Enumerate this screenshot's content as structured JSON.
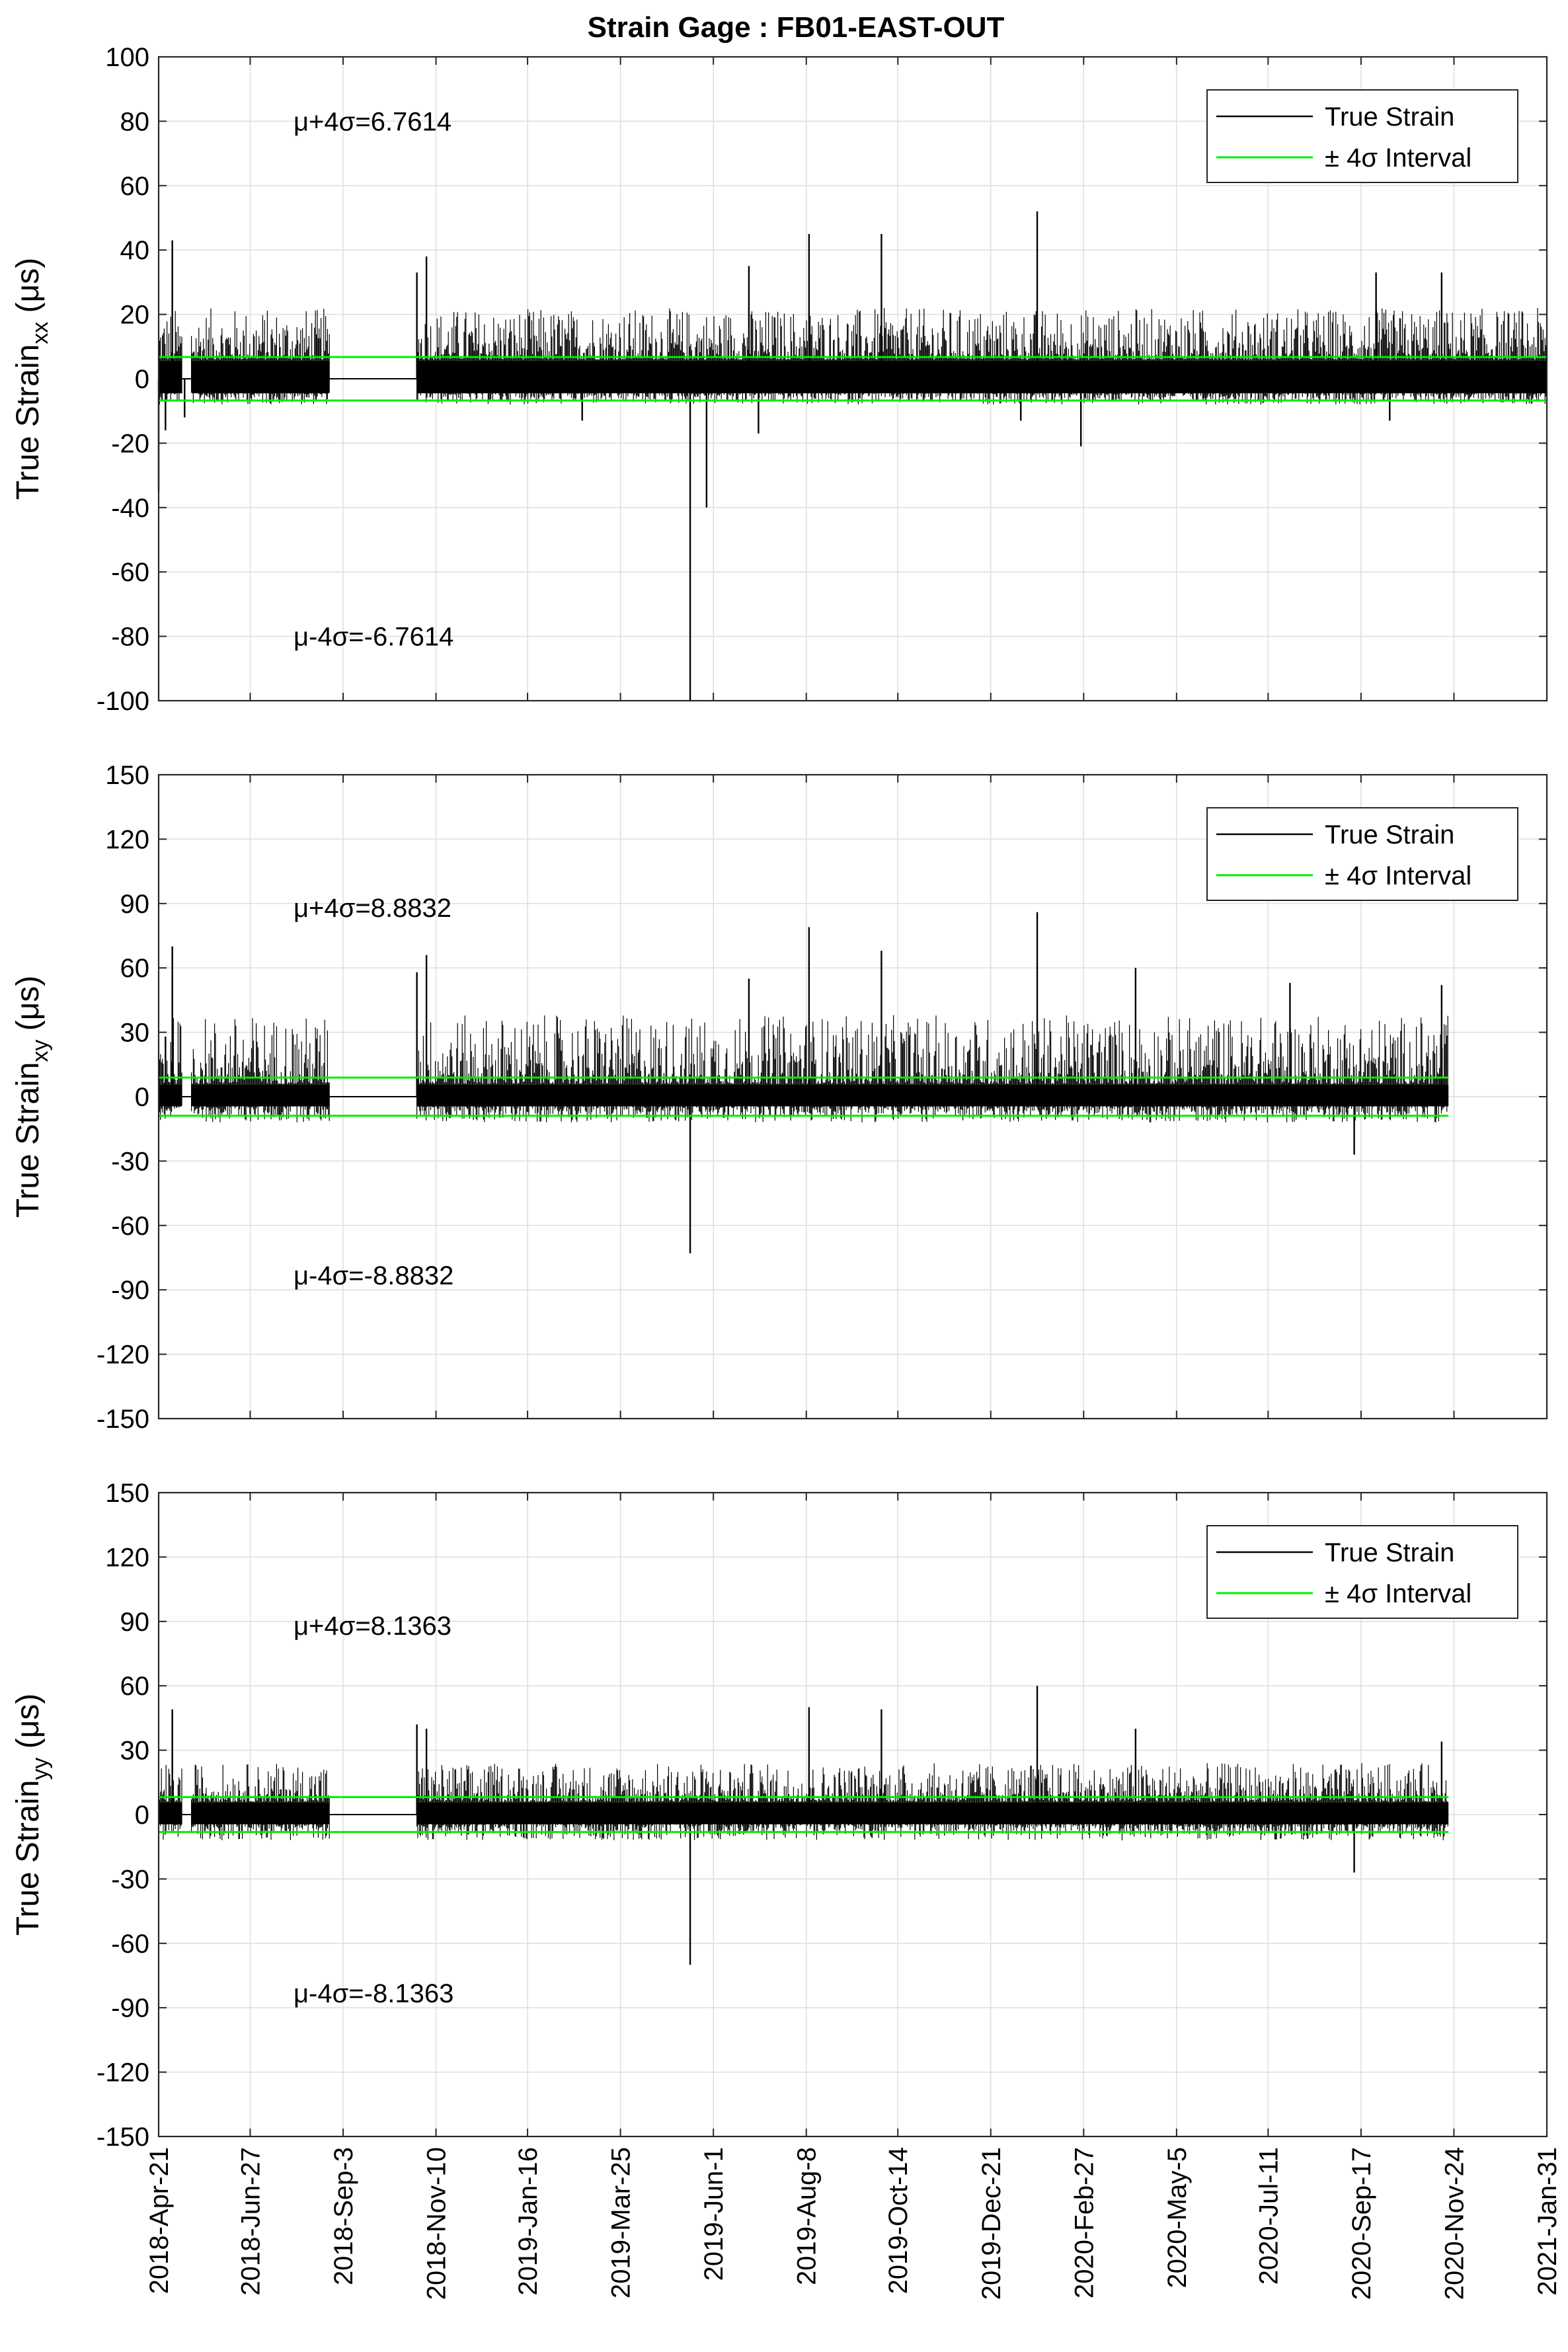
{
  "figure": {
    "title": "Strain Gage : FB01-EAST-OUT"
  },
  "chart_data": [
    {
      "type": "line",
      "title": "Strain Gage : FB01-EAST-OUT",
      "ylabel_main": "True Strain",
      "ylabel_sub": "xx",
      "ylabel_unit": "(μs)",
      "ylim": [
        -100,
        100
      ],
      "yticks": [
        100,
        80,
        60,
        40,
        20,
        0,
        -20,
        -40,
        -60,
        -80,
        -100
      ],
      "grid": true,
      "legend_position": "top-right",
      "legend": [
        "True Strain",
        "± 4σ Interval"
      ],
      "annotations": {
        "upper": "μ+4σ=6.7614",
        "lower": "μ-4σ=-6.7614"
      },
      "threshold": 6.7614,
      "data_end": "2021-01-31",
      "series": [
        {
          "name": "True Strain",
          "color": "#000000",
          "envelope_typical_max": 22,
          "envelope_typical_min": -8
        },
        {
          "name": "± 4σ Interval",
          "color": "#00ee00",
          "values": [
            6.7614,
            -6.7614
          ]
        }
      ],
      "spikes": [
        {
          "x": "2018-04-21",
          "y": -35
        },
        {
          "x": "2018-04-26",
          "y": -16
        },
        {
          "x": "2018-05-01",
          "y": 43
        },
        {
          "x": "2018-05-10",
          "y": -12
        },
        {
          "x": "2018-10-27",
          "y": 33
        },
        {
          "x": "2018-11-03",
          "y": 38
        },
        {
          "x": "2019-02-25",
          "y": -13
        },
        {
          "x": "2019-05-15",
          "y": -100
        },
        {
          "x": "2019-05-27",
          "y": -40
        },
        {
          "x": "2019-06-27",
          "y": 35
        },
        {
          "x": "2019-07-04",
          "y": -17
        },
        {
          "x": "2019-08-10",
          "y": 45
        },
        {
          "x": "2019-10-02",
          "y": 45
        },
        {
          "x": "2020-01-12",
          "y": -13
        },
        {
          "x": "2020-01-24",
          "y": 52
        },
        {
          "x": "2020-02-25",
          "y": -21
        },
        {
          "x": "2020-09-28",
          "y": 33
        },
        {
          "x": "2020-10-08",
          "y": -13
        },
        {
          "x": "2020-11-15",
          "y": 33
        }
      ]
    },
    {
      "type": "line",
      "ylabel_main": "True Strain",
      "ylabel_sub": "xy",
      "ylabel_unit": "(μs)",
      "ylim": [
        -150,
        150
      ],
      "yticks": [
        150,
        120,
        90,
        60,
        30,
        0,
        -30,
        -60,
        -90,
        -120,
        -150
      ],
      "grid": true,
      "legend_position": "top-right",
      "legend": [
        "True Strain",
        "± 4σ Interval"
      ],
      "annotations": {
        "upper": "μ+4σ=8.8832",
        "lower": "μ-4σ=-8.8832"
      },
      "threshold": 8.8832,
      "data_end": "2020-11-20",
      "series": [
        {
          "name": "True Strain",
          "color": "#000000",
          "envelope_typical_max": 38,
          "envelope_typical_min": -12
        },
        {
          "name": "± 4σ Interval",
          "color": "#00ee00",
          "values": [
            8.8832,
            -8.8832
          ]
        }
      ],
      "spikes": [
        {
          "x": "2018-04-26",
          "y": 28
        },
        {
          "x": "2018-05-01",
          "y": 70
        },
        {
          "x": "2018-10-27",
          "y": 58
        },
        {
          "x": "2018-11-03",
          "y": 66
        },
        {
          "x": "2019-05-15",
          "y": -73
        },
        {
          "x": "2019-06-27",
          "y": 55
        },
        {
          "x": "2019-08-10",
          "y": 79
        },
        {
          "x": "2019-10-02",
          "y": 68
        },
        {
          "x": "2020-01-24",
          "y": 86
        },
        {
          "x": "2020-04-05",
          "y": 60
        },
        {
          "x": "2020-07-27",
          "y": 53
        },
        {
          "x": "2020-09-12",
          "y": -27
        },
        {
          "x": "2020-11-15",
          "y": 52
        }
      ]
    },
    {
      "type": "line",
      "ylabel_main": "True Strain",
      "ylabel_sub": "yy",
      "ylabel_unit": "(μs)",
      "ylim": [
        -150,
        150
      ],
      "yticks": [
        150,
        120,
        90,
        60,
        30,
        0,
        -30,
        -60,
        -90,
        -120,
        -150
      ],
      "grid": true,
      "legend_position": "top-right",
      "legend": [
        "True Strain",
        "± 4σ Interval"
      ],
      "annotations": {
        "upper": "μ+4σ=8.1363",
        "lower": "μ-4σ=-8.1363"
      },
      "threshold": 8.1363,
      "data_end": "2020-11-20",
      "series": [
        {
          "name": "True Strain",
          "color": "#000000",
          "envelope_typical_max": 24,
          "envelope_typical_min": -12
        },
        {
          "name": "± 4σ Interval",
          "color": "#00ee00",
          "values": [
            8.1363,
            -8.1363
          ]
        }
      ],
      "spikes": [
        {
          "x": "2018-05-01",
          "y": 49
        },
        {
          "x": "2018-10-27",
          "y": 42
        },
        {
          "x": "2018-11-03",
          "y": 40
        },
        {
          "x": "2019-05-15",
          "y": -70
        },
        {
          "x": "2019-08-10",
          "y": 50
        },
        {
          "x": "2019-10-02",
          "y": 49
        },
        {
          "x": "2020-01-24",
          "y": 60
        },
        {
          "x": "2020-04-05",
          "y": 40
        },
        {
          "x": "2020-09-12",
          "y": -27
        },
        {
          "x": "2020-11-15",
          "y": 34
        }
      ]
    }
  ],
  "x_axis": {
    "range": [
      "2018-04-21",
      "2021-01-31"
    ],
    "ticks": [
      "2018-Apr-21",
      "2018-Jun-27",
      "2018-Sep-3",
      "2018-Nov-10",
      "2019-Jan-16",
      "2019-Mar-25",
      "2019-Jun-1",
      "2019-Aug-8",
      "2019-Oct-14",
      "2019-Dec-21",
      "2020-Feb-27",
      "2020-May-5",
      "2020-Jul-11",
      "2020-Sep-17",
      "2020-Nov-24",
      "2021-Jan-31"
    ],
    "tick_dates": [
      "2018-04-21",
      "2018-06-27",
      "2018-09-03",
      "2018-11-10",
      "2019-01-16",
      "2019-03-25",
      "2019-06-01",
      "2019-08-08",
      "2019-10-14",
      "2019-12-21",
      "2020-02-27",
      "2020-05-05",
      "2020-07-11",
      "2020-09-17",
      "2020-11-24",
      "2021-01-31"
    ]
  },
  "data_segments": [
    {
      "start": "2018-04-21",
      "end": "2018-05-08"
    },
    {
      "start": "2018-05-15",
      "end": "2018-08-24"
    },
    {
      "start": "2018-10-27",
      "end": "2021-01-31"
    }
  ],
  "flat_segments": [
    {
      "start": "2018-05-08",
      "end": "2018-05-15"
    },
    {
      "start": "2018-08-24",
      "end": "2018-10-27"
    }
  ]
}
